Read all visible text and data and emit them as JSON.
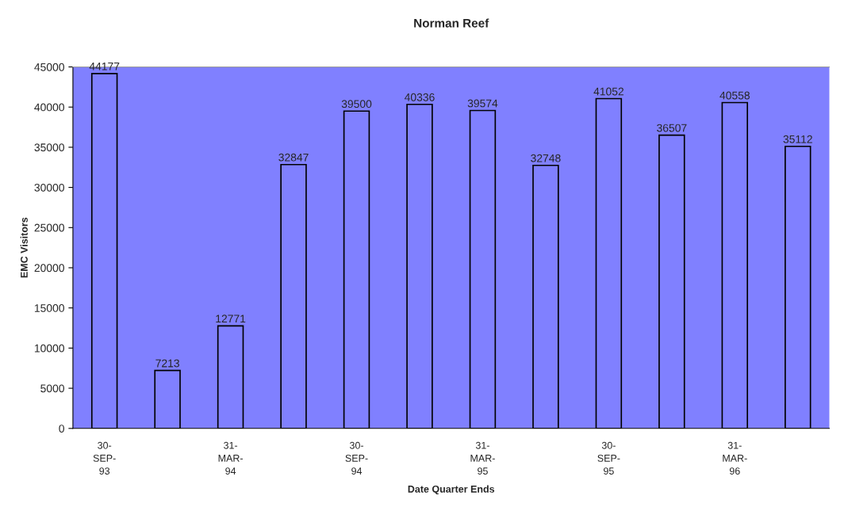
{
  "chart_data": {
    "type": "bar",
    "title": "Norman Reef",
    "xlabel": "Date Quarter Ends",
    "ylabel": "EMC Visitors",
    "categories": [
      "30-\nSEP-\n93",
      null,
      "31-\nMAR-\n94",
      null,
      "30-\nSEP-\n94",
      null,
      "31-\nMAR-\n95",
      null,
      "30-\nSEP-\n95",
      null,
      "31-\nMAR-\n96",
      null
    ],
    "values": [
      44177,
      7213,
      12771,
      32847,
      39500,
      40336,
      39574,
      32748,
      41052,
      36507,
      40558,
      35112
    ],
    "color": "#8080ff",
    "ylim": [
      0,
      45000
    ],
    "yticks": [
      0,
      5000,
      10000,
      15000,
      20000,
      25000,
      30000,
      35000,
      40000,
      45000
    ],
    "grid": false,
    "legend": false,
    "data_labels": true
  }
}
